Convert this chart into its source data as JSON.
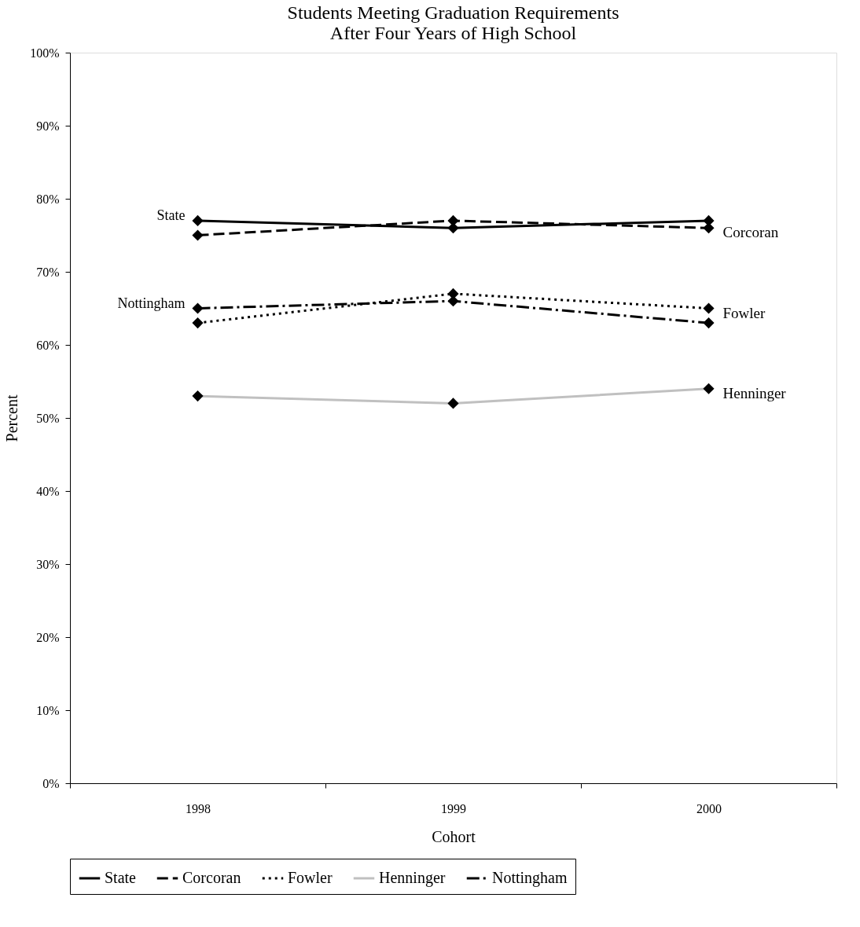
{
  "chart_data": {
    "type": "line",
    "title": [
      "Students Meeting Graduation Requirements",
      "After Four Years of High School"
    ],
    "xlabel": "Cohort",
    "ylabel": "Percent",
    "categories": [
      "1998",
      "1999",
      "2000"
    ],
    "series": [
      {
        "name": "State",
        "color": "#000000",
        "line_style": "solid",
        "values": [
          77,
          76,
          77
        ]
      },
      {
        "name": "Corcoran",
        "color": "#000000",
        "line_style": "dashed",
        "values": [
          75,
          77,
          76
        ]
      },
      {
        "name": "Fowler",
        "color": "#000000",
        "line_style": "dotted",
        "values": [
          63,
          67,
          65
        ]
      },
      {
        "name": "Henninger",
        "color": "#c0c0c0",
        "line_style": "solid",
        "values": [
          53,
          52,
          54
        ]
      },
      {
        "name": "Nottingham",
        "color": "#000000",
        "line_style": "dashdot",
        "values": [
          65,
          66,
          63
        ]
      }
    ],
    "annotations": [
      {
        "text": "State",
        "x": "1998",
        "y": 77
      },
      {
        "text": "Corcoran",
        "x": "2000",
        "y": 76
      },
      {
        "text": "Nottingham",
        "x": "1998",
        "y": 65
      },
      {
        "text": "Fowler",
        "x": "2000",
        "y": 65
      },
      {
        "text": "Henninger",
        "x": "2000",
        "y": 54
      }
    ],
    "ylim": [
      0,
      100
    ],
    "yticks": [
      {
        "value": 0,
        "label": "0%"
      },
      {
        "value": 10,
        "label": "10%"
      },
      {
        "value": 20,
        "label": "20%"
      },
      {
        "value": 30,
        "label": "30%"
      },
      {
        "value": 40,
        "label": "40%"
      },
      {
        "value": 50,
        "label": "50%"
      },
      {
        "value": 60,
        "label": "60%"
      },
      {
        "value": 70,
        "label": "70%"
      },
      {
        "value": 80,
        "label": "80%"
      },
      {
        "value": 90,
        "label": "90%"
      },
      {
        "value": 100,
        "label": "100%"
      }
    ],
    "grid": false,
    "legend": "bottom",
    "marker": "diamond"
  }
}
